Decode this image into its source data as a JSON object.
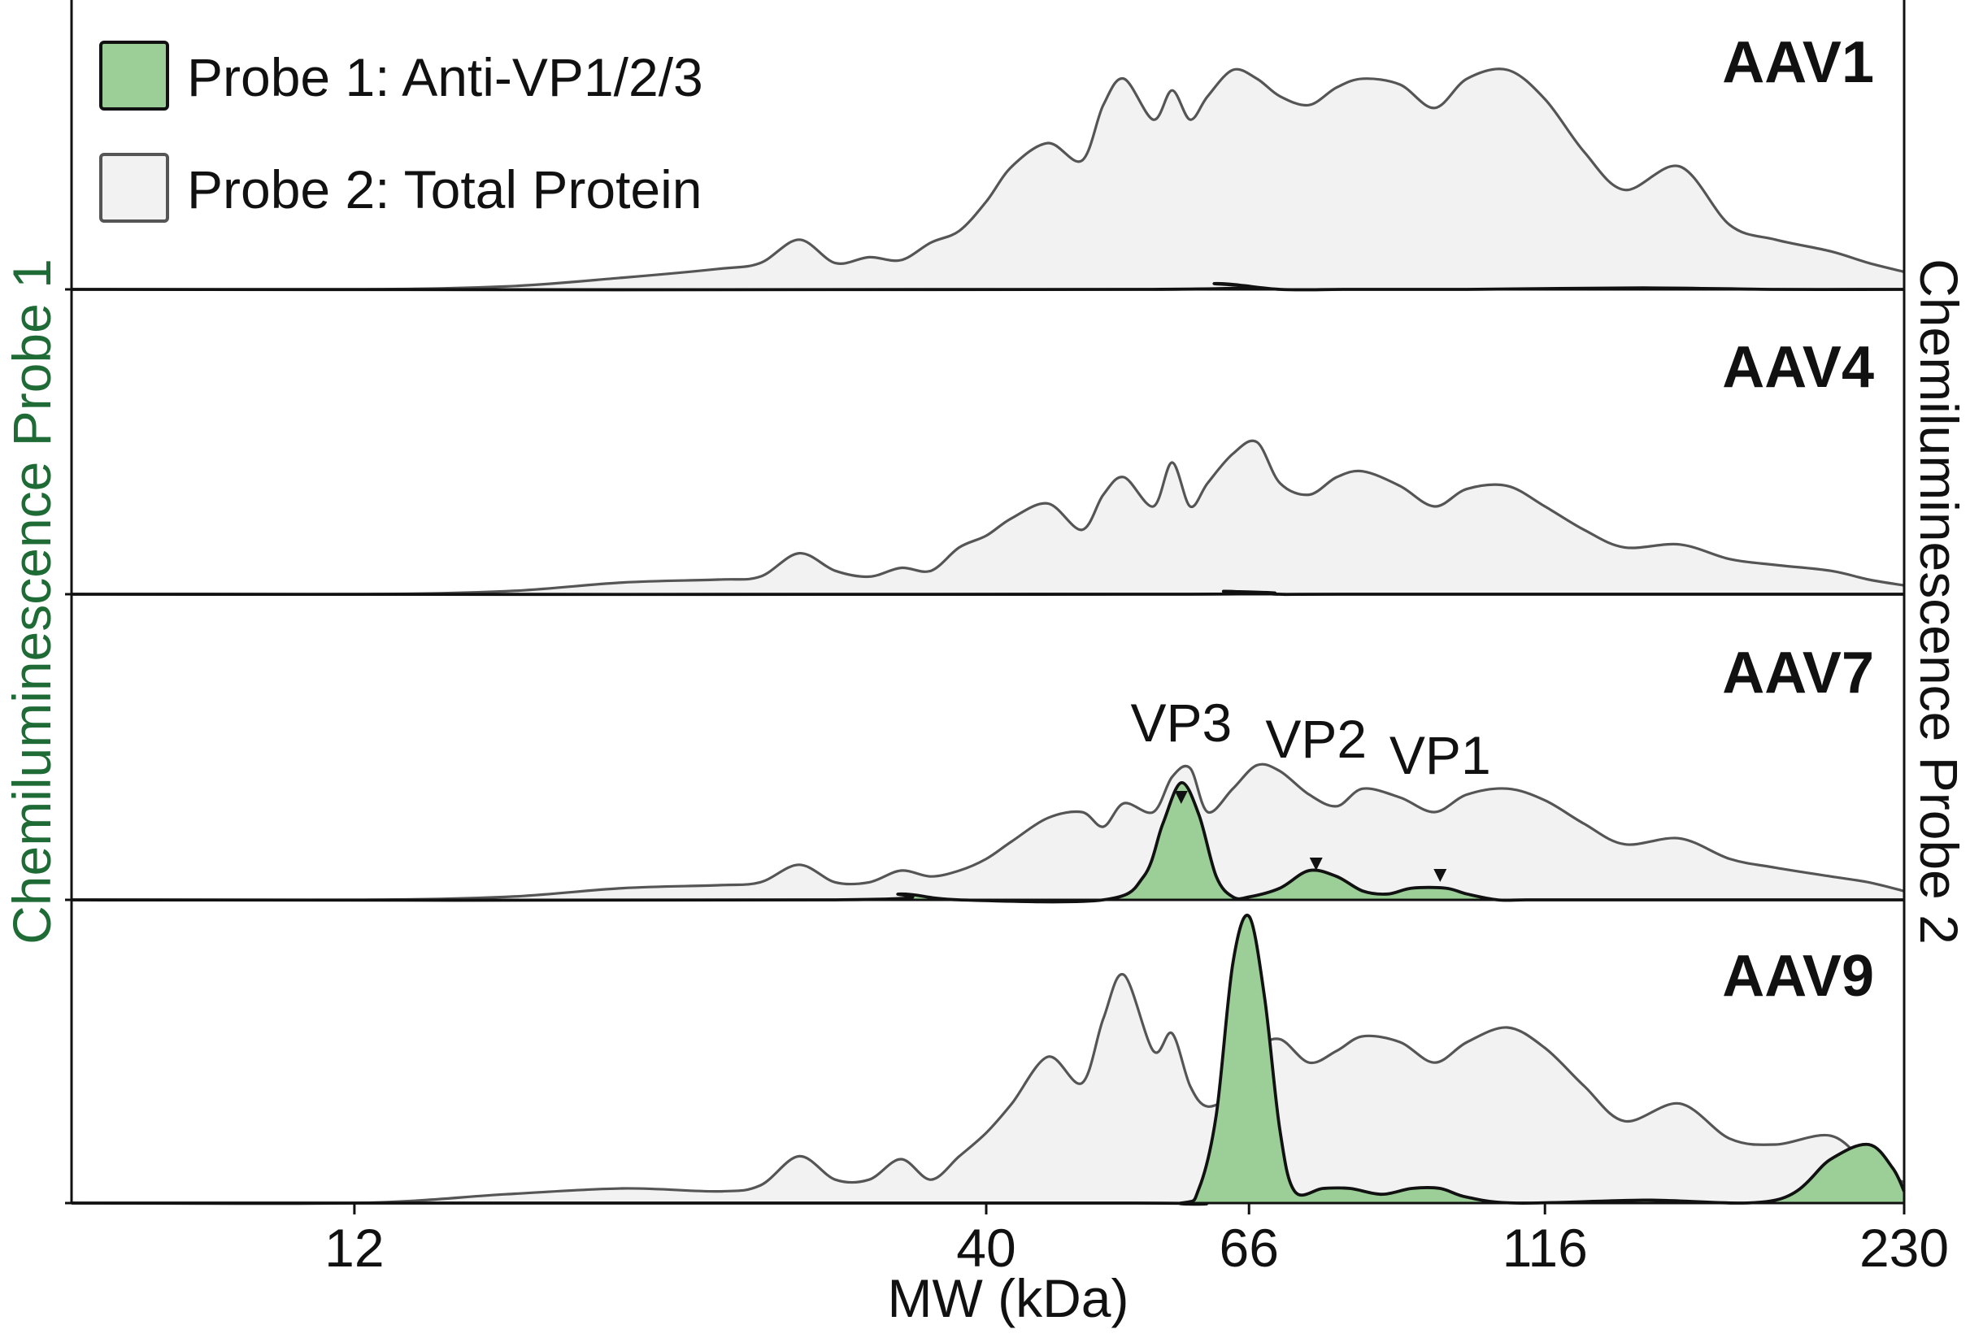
{
  "chart_data": {
    "type": "area",
    "xlabel": "MW (kDa)",
    "y_left_label": "Chemiluminescence Probe 1",
    "y_right_label": "Chemiluminescence Probe 2",
    "x_scale": "log",
    "xlim": [
      7,
      230
    ],
    "x_ticks": [
      {
        "value": 12,
        "label": "12"
      },
      {
        "value": 40,
        "label": "40"
      },
      {
        "value": 66,
        "label": "66"
      },
      {
        "value": 116,
        "label": "116"
      },
      {
        "value": 230,
        "label": "230"
      }
    ],
    "legend": {
      "placement": "top-left",
      "entries": [
        {
          "label": "Probe 1: Anti-VP1/2/3",
          "fill": "#9ccf98",
          "stroke": "#111111"
        },
        {
          "label": "Probe 2: Total Protein",
          "fill": "#f2f2f2",
          "stroke": "#555555"
        }
      ]
    },
    "colors": {
      "probe1_fill": "#9ccf98",
      "probe1_line": "#111111",
      "probe1_fit": "#2e8b3a",
      "probe2_fill": "#f2f2f2",
      "probe2_line": "#555555",
      "left_axis_label": "#1e6b36"
    },
    "panels": [
      {
        "title": "AAV1",
        "probe2_total_protein": {
          "x": [
            7,
            12,
            16,
            20,
            24,
            26,
            28,
            30,
            32,
            34,
            36,
            38,
            40,
            42,
            45,
            48,
            50,
            52,
            55,
            57,
            59,
            61,
            64,
            67,
            70,
            74,
            78,
            82,
            88,
            94,
            100,
            108,
            116,
            125,
            135,
            150,
            165,
            180,
            200,
            215,
            230
          ],
          "y": [
            0.0,
            0.0,
            0.01,
            0.04,
            0.07,
            0.09,
            0.17,
            0.09,
            0.11,
            0.1,
            0.16,
            0.2,
            0.3,
            0.42,
            0.5,
            0.44,
            0.63,
            0.72,
            0.58,
            0.68,
            0.58,
            0.66,
            0.75,
            0.72,
            0.66,
            0.63,
            0.69,
            0.72,
            0.7,
            0.62,
            0.72,
            0.75,
            0.65,
            0.47,
            0.34,
            0.42,
            0.22,
            0.17,
            0.13,
            0.09,
            0.06
          ]
        },
        "probe1_anti_vp": {
          "x": [
            7,
            55,
            62,
            70,
            80,
            100,
            140,
            180,
            230
          ],
          "y": [
            0.0,
            0.0,
            0.02,
            0.0,
            0.0,
            0.0,
            0.005,
            0.0,
            0.0
          ]
        },
        "annotations": []
      },
      {
        "title": "AAV4",
        "probe2_total_protein": {
          "x": [
            7,
            12,
            16,
            20,
            24,
            26,
            28,
            30,
            32,
            34,
            36,
            38,
            40,
            42,
            45,
            48,
            50,
            52,
            55,
            57,
            59,
            61,
            64,
            67,
            70,
            74,
            78,
            82,
            88,
            94,
            100,
            108,
            116,
            125,
            135,
            150,
            165,
            180,
            200,
            215,
            230
          ],
          "y": [
            0.0,
            0.0,
            0.01,
            0.04,
            0.05,
            0.06,
            0.14,
            0.08,
            0.06,
            0.09,
            0.08,
            0.16,
            0.2,
            0.26,
            0.31,
            0.22,
            0.34,
            0.4,
            0.3,
            0.45,
            0.3,
            0.38,
            0.48,
            0.52,
            0.38,
            0.34,
            0.4,
            0.42,
            0.37,
            0.3,
            0.36,
            0.37,
            0.3,
            0.22,
            0.16,
            0.17,
            0.12,
            0.1,
            0.08,
            0.05,
            0.03
          ]
        },
        "probe1_anti_vp": {
          "x": [
            7,
            58,
            63,
            70,
            80,
            230
          ],
          "y": [
            0.0,
            0.0,
            0.01,
            0.0,
            0.0,
            0.0
          ]
        },
        "annotations": []
      },
      {
        "title": "AAV7",
        "probe2_total_protein": {
          "x": [
            7,
            12,
            16,
            20,
            24,
            26,
            28,
            30,
            32,
            34,
            36,
            38,
            40,
            42,
            45,
            48,
            50,
            52,
            55,
            57,
            59,
            61,
            64,
            67,
            70,
            74,
            78,
            82,
            88,
            94,
            100,
            108,
            116,
            125,
            135,
            150,
            165,
            180,
            200,
            215,
            230
          ],
          "y": [
            0.0,
            0.0,
            0.01,
            0.04,
            0.05,
            0.06,
            0.12,
            0.06,
            0.06,
            0.1,
            0.08,
            0.1,
            0.14,
            0.2,
            0.28,
            0.3,
            0.25,
            0.33,
            0.3,
            0.42,
            0.45,
            0.3,
            0.38,
            0.46,
            0.44,
            0.36,
            0.32,
            0.38,
            0.35,
            0.3,
            0.36,
            0.38,
            0.34,
            0.26,
            0.19,
            0.21,
            0.14,
            0.11,
            0.08,
            0.06,
            0.03
          ]
        },
        "probe1_anti_vp": {
          "x": [
            7,
            30,
            34,
            38,
            50,
            54,
            56,
            58,
            60,
            62,
            64,
            66,
            70,
            74,
            78,
            82,
            86,
            90,
            96,
            100,
            106,
            112,
            125,
            230
          ],
          "y": [
            0.0,
            0.0,
            0.02,
            0.0,
            0.0,
            0.08,
            0.26,
            0.4,
            0.29,
            0.08,
            0.01,
            0.01,
            0.04,
            0.1,
            0.08,
            0.03,
            0.02,
            0.04,
            0.04,
            0.02,
            0.0,
            0.0,
            0.0,
            0.0
          ]
        },
        "annotations": [
          {
            "label": "VP3",
            "x": 58
          },
          {
            "label": "VP2",
            "x": 75
          },
          {
            "label": "VP1",
            "x": 95
          }
        ]
      },
      {
        "title": "AAV9",
        "probe2_total_protein": {
          "x": [
            7,
            12,
            16,
            20,
            24,
            26,
            28,
            30,
            32,
            34,
            36,
            38,
            40,
            42,
            45,
            48,
            50,
            52,
            55,
            57,
            59,
            61,
            64,
            67,
            70,
            74,
            78,
            82,
            88,
            94,
            100,
            108,
            116,
            125,
            135,
            150,
            165,
            180,
            200,
            215,
            230
          ],
          "y": [
            0.0,
            0.0,
            0.03,
            0.05,
            0.04,
            0.06,
            0.16,
            0.08,
            0.08,
            0.15,
            0.08,
            0.16,
            0.24,
            0.34,
            0.5,
            0.41,
            0.63,
            0.78,
            0.52,
            0.58,
            0.4,
            0.33,
            0.38,
            0.52,
            0.56,
            0.48,
            0.52,
            0.57,
            0.55,
            0.48,
            0.55,
            0.6,
            0.53,
            0.4,
            0.28,
            0.34,
            0.22,
            0.2,
            0.23,
            0.13,
            0.07
          ]
        },
        "probe1_anti_vp": {
          "x": [
            7,
            50,
            58,
            60,
            62,
            64,
            66,
            68,
            70,
            72,
            76,
            80,
            85,
            90,
            95,
            100,
            110,
            140,
            180,
            200,
            215,
            225,
            230
          ],
          "y": [
            0.0,
            0.0,
            0.0,
            0.05,
            0.3,
            0.82,
            0.98,
            0.7,
            0.25,
            0.04,
            0.05,
            0.05,
            0.03,
            0.05,
            0.05,
            0.02,
            0.0,
            0.01,
            0.01,
            0.15,
            0.2,
            0.12,
            0.04
          ]
        },
        "annotations": []
      }
    ]
  }
}
